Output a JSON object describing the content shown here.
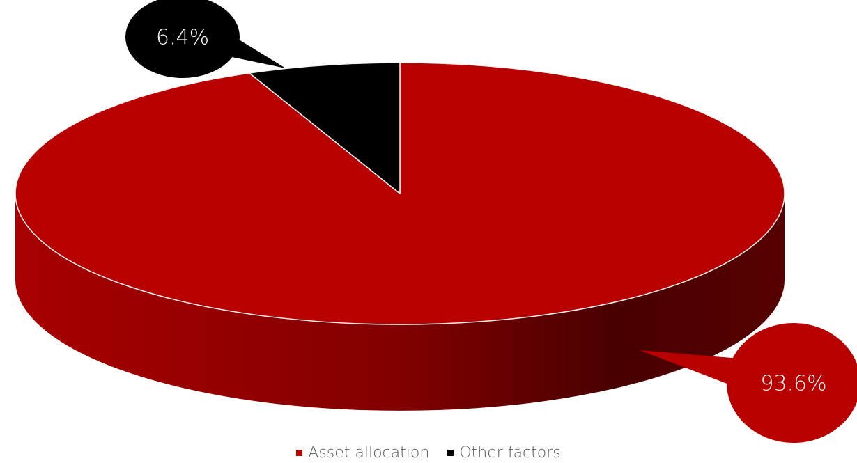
{
  "chart_data": {
    "type": "pie",
    "title": "",
    "categories": [
      "Asset allocation",
      "Other factors"
    ],
    "values": [
      93.6,
      6.4
    ],
    "data_labels": [
      "93.6%",
      "6.4%"
    ],
    "colors": [
      "#B80000",
      "#000000"
    ],
    "side_gradient": [
      "#A80000",
      "#480000"
    ],
    "style": "3d",
    "label_style": "callout",
    "legend_position": "bottom",
    "grid": false
  },
  "legend": {
    "items": [
      {
        "label": "Asset allocation",
        "color": "#B80000"
      },
      {
        "label": "Other factors",
        "color": "#000000"
      }
    ]
  }
}
